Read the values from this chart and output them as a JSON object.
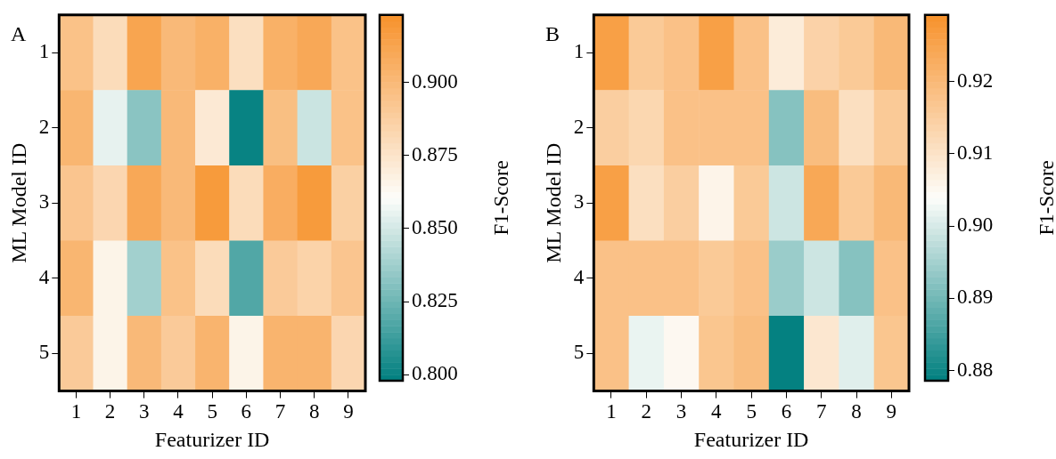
{
  "chart_data": [
    {
      "type": "heatmap",
      "title": "A",
      "xlabel": "Featurizer ID",
      "ylabel": "ML Model ID",
      "clabel": "F1-Score",
      "categories": [
        "1",
        "2",
        "3",
        "4",
        "5",
        "6",
        "7",
        "8",
        "9"
      ],
      "y_categories": [
        "1",
        "2",
        "3",
        "4",
        "5"
      ],
      "cells": [
        [
          0.895,
          0.88,
          0.912,
          0.9,
          0.905,
          0.878,
          0.905,
          0.91,
          0.895
        ],
        [
          0.902,
          0.855,
          0.832,
          0.9,
          0.872,
          0.8,
          0.897,
          0.848,
          0.895
        ],
        [
          0.893,
          0.883,
          0.91,
          0.9,
          0.918,
          0.88,
          0.907,
          0.918,
          0.887
        ],
        [
          0.902,
          0.866,
          0.838,
          0.895,
          0.88,
          0.818,
          0.89,
          0.885,
          0.893
        ],
        [
          0.89,
          0.866,
          0.9,
          0.89,
          0.903,
          0.866,
          0.903,
          0.903,
          0.883
        ]
      ],
      "clim": [
        0.798,
        0.923
      ],
      "cticks": [
        {
          "value": 0.8,
          "label": "0.800"
        },
        {
          "value": 0.825,
          "label": "0.825"
        },
        {
          "value": 0.85,
          "label": "0.850"
        },
        {
          "value": 0.875,
          "label": "0.875"
        },
        {
          "value": 0.9,
          "label": "0.900"
        }
      ],
      "colors": [
        "#007f7f",
        "#fdfdfa",
        "#f7922c"
      ]
    },
    {
      "type": "heatmap",
      "title": "B",
      "xlabel": "Featurizer ID",
      "ylabel": "ML Model ID",
      "clabel": "F1-Score",
      "categories": [
        "1",
        "2",
        "3",
        "4",
        "5",
        "6",
        "7",
        "8",
        "9"
      ],
      "y_categories": [
        "1",
        "2",
        "3",
        "4",
        "5"
      ],
      "cells": [
        [
          0.926,
          0.916,
          0.918,
          0.926,
          0.918,
          0.908,
          0.914,
          0.916,
          0.92
        ],
        [
          0.915,
          0.913,
          0.918,
          0.918,
          0.918,
          0.892,
          0.919,
          0.911,
          0.916
        ],
        [
          0.926,
          0.911,
          0.915,
          0.906,
          0.916,
          0.899,
          0.924,
          0.916,
          0.92
        ],
        [
          0.918,
          0.918,
          0.918,
          0.916,
          0.918,
          0.894,
          0.899,
          0.892,
          0.918
        ],
        [
          0.918,
          0.902,
          0.905,
          0.917,
          0.919,
          0.879,
          0.909,
          0.901,
          0.917
        ]
      ],
      "clim": [
        0.8786,
        0.9292
      ],
      "cticks": [
        {
          "value": 0.88,
          "label": "0.88"
        },
        {
          "value": 0.89,
          "label": "0.89"
        },
        {
          "value": 0.9,
          "label": "0.90"
        },
        {
          "value": 0.91,
          "label": "0.91"
        },
        {
          "value": 0.92,
          "label": "0.92"
        }
      ],
      "colors": [
        "#007f7f",
        "#fdfdfa",
        "#f7922c"
      ]
    }
  ]
}
